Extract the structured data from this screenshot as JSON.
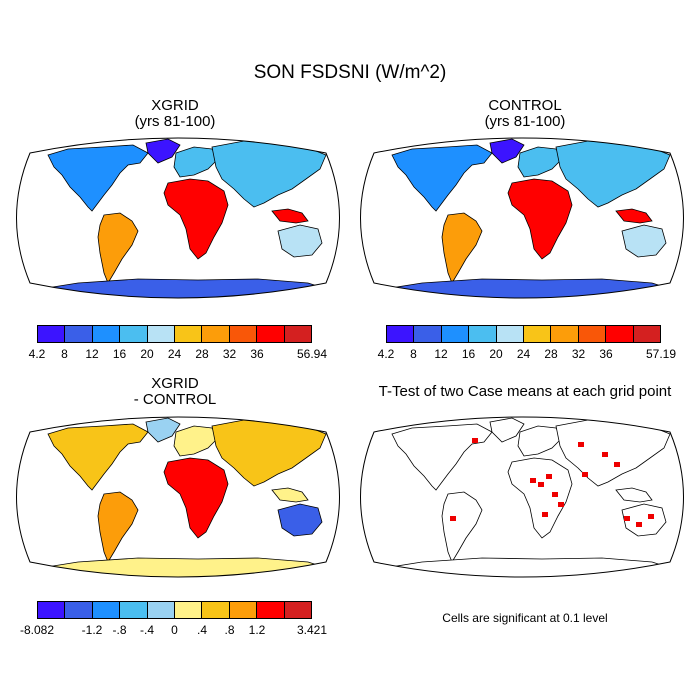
{
  "title": "SON FSDSNI (W/m^2)",
  "panels": {
    "top_left": {
      "title": "XGRID",
      "subtitle": "(yrs 81-100)"
    },
    "top_right": {
      "title": "CONTROL",
      "subtitle": "(yrs 81-100)"
    },
    "bottom_left": {
      "title": "XGRID",
      "subtitle": "- CONTROL"
    },
    "bottom_right": {
      "title": "T-Test of two Case means at each grid point"
    }
  },
  "colorbars": {
    "xgrid": {
      "colors": [
        "#3c14ff",
        "#3a5fe8",
        "#1e90ff",
        "#4bbef0",
        "#b8e2f5",
        "#f8c418",
        "#fc9d0a",
        "#f95708",
        "#ff0000",
        "#d42020"
      ],
      "labels": [
        "4.2",
        "8",
        "12",
        "16",
        "20",
        "24",
        "28",
        "32",
        "36",
        "56.94"
      ]
    },
    "control": {
      "colors": [
        "#3c14ff",
        "#3a5fe8",
        "#1e90ff",
        "#4bbef0",
        "#b8e2f5",
        "#f8c418",
        "#fc9d0a",
        "#f95708",
        "#ff0000",
        "#d42020"
      ],
      "labels": [
        "4.2",
        "8",
        "12",
        "16",
        "20",
        "24",
        "28",
        "32",
        "36",
        "57.19"
      ]
    },
    "diff": {
      "colors": [
        "#3c14ff",
        "#3a5fe8",
        "#1e90ff",
        "#4bbef0",
        "#9ad2f2",
        "#fff28a",
        "#f8c418",
        "#fc9d0a",
        "#ff0000",
        "#d42020"
      ],
      "labels": [
        "-8.082",
        "-1.2",
        "-.8",
        "-.4",
        "0",
        ".4",
        ".8",
        "1.2",
        "3.421"
      ]
    }
  },
  "significance_note": "Cells are significant at 0.1 level",
  "significance_color": "#ee0000"
}
